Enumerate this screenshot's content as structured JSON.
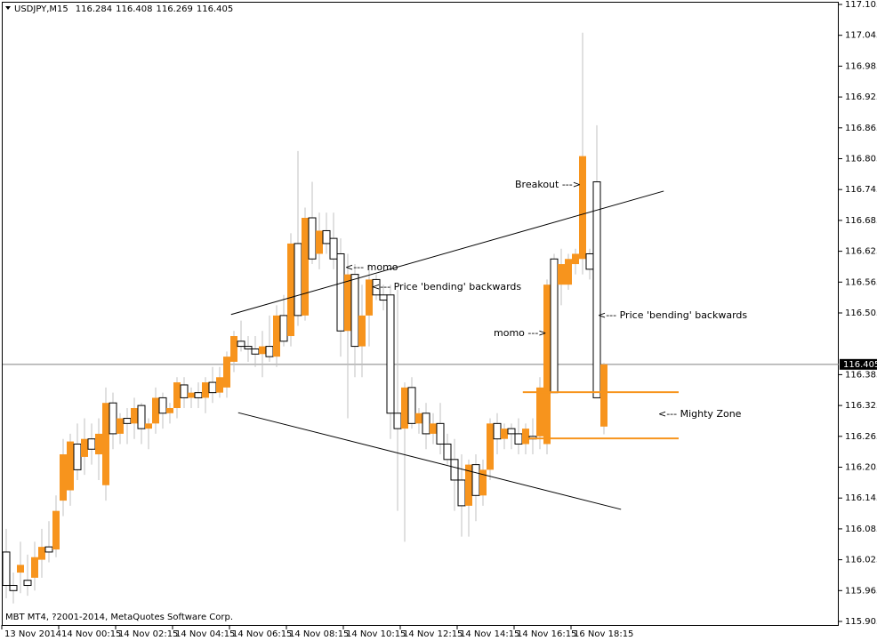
{
  "chart_data": {
    "type": "candlestick",
    "symbol": "USDJPY,M15",
    "header_ohlc": [
      116.284,
      116.408,
      116.269,
      116.405
    ],
    "footer": "MBT MT4, ?2001-2014, MetaQuotes Software Corp.",
    "up_color": "#f7941d",
    "down_color": "#ffffff",
    "outline_color": "#000000",
    "wick_color": "#c0c0c0",
    "categories": [
      "13 Nov 2014",
      null,
      null,
      null,
      null,
      null,
      null,
      null,
      "14 Nov 00:15",
      null,
      null,
      null,
      null,
      null,
      null,
      null,
      "14 Nov 02:15",
      null,
      null,
      null,
      null,
      null,
      null,
      null,
      "14 Nov 04:15",
      null,
      null,
      null,
      null,
      null,
      null,
      null,
      "14 Nov 06:15",
      null,
      null,
      null,
      null,
      null,
      null,
      null,
      "14 Nov 08:15",
      null,
      null,
      null,
      null,
      null,
      null,
      null,
      "14 Nov 10:15",
      null,
      null,
      null,
      null,
      null,
      null,
      null,
      "14 Nov 12:15",
      null,
      null,
      null,
      null,
      null,
      null,
      null,
      "14 Nov 14:15",
      null,
      null,
      null,
      null,
      null,
      null,
      null,
      "14 Nov 16:15",
      null,
      null,
      null,
      null,
      null,
      null,
      null,
      "16 Nov 18:15",
      null,
      null,
      null,
      null
    ],
    "open": [
      116.04,
      115.975,
      116.0,
      115.985,
      115.99,
      116.025,
      116.05,
      116.045,
      116.14,
      116.16,
      116.25,
      116.225,
      116.26,
      116.23,
      116.17,
      116.33,
      116.27,
      116.3,
      116.29,
      116.325,
      116.28,
      116.29,
      116.34,
      116.31,
      116.32,
      116.365,
      116.34,
      116.35,
      116.34,
      116.37,
      116.35,
      116.36,
      116.41,
      116.45,
      116.44,
      116.435,
      116.425,
      116.44,
      116.42,
      116.5,
      116.46,
      116.64,
      116.5,
      116.69,
      116.62,
      116.665,
      116.65,
      116.62,
      116.47,
      116.58,
      116.44,
      116.5,
      116.57,
      116.54,
      116.54,
      116.31,
      116.28,
      116.36,
      116.29,
      116.31,
      116.27,
      116.29,
      116.25,
      116.22,
      116.18,
      116.13,
      116.21,
      116.15,
      116.2,
      116.29,
      116.26,
      116.28,
      116.27,
      116.25,
      116.265,
      116.265,
      116.25,
      116.61,
      116.56,
      116.56,
      116.6,
      116.61,
      116.62,
      116.76,
      116.284
    ],
    "high": [
      116.085,
      116.0,
      116.06,
      116.035,
      116.06,
      116.085,
      116.1,
      116.15,
      116.26,
      116.27,
      116.29,
      116.3,
      116.29,
      116.3,
      116.36,
      116.35,
      116.31,
      116.32,
      116.34,
      116.33,
      116.3,
      116.36,
      116.35,
      116.33,
      116.38,
      116.38,
      116.36,
      116.37,
      116.38,
      116.4,
      116.4,
      116.43,
      116.47,
      116.49,
      116.46,
      116.46,
      116.47,
      116.5,
      116.52,
      116.54,
      116.66,
      116.82,
      116.71,
      116.76,
      116.7,
      116.7,
      116.7,
      116.65,
      116.62,
      116.6,
      116.56,
      116.6,
      116.58,
      116.56,
      116.56,
      116.55,
      116.37,
      116.38,
      116.32,
      116.33,
      116.31,
      116.33,
      116.27,
      116.26,
      116.23,
      116.22,
      116.23,
      116.22,
      116.3,
      116.31,
      116.29,
      116.29,
      116.3,
      116.29,
      116.3,
      116.38,
      116.57,
      116.62,
      116.63,
      116.62,
      116.63,
      117.05,
      116.63,
      116.87,
      116.408
    ],
    "low": [
      115.95,
      115.94,
      115.96,
      115.955,
      115.965,
      115.99,
      116.02,
      116.03,
      116.11,
      116.13,
      116.18,
      116.19,
      116.21,
      116.18,
      116.14,
      116.24,
      116.25,
      116.25,
      116.26,
      116.25,
      116.24,
      116.27,
      116.28,
      116.29,
      116.3,
      116.32,
      116.32,
      116.32,
      116.31,
      116.33,
      116.34,
      116.34,
      116.39,
      116.43,
      116.41,
      116.4,
      116.38,
      116.41,
      116.4,
      116.44,
      116.44,
      116.48,
      116.49,
      116.6,
      116.59,
      116.62,
      116.59,
      116.42,
      116.3,
      116.38,
      116.38,
      116.44,
      116.53,
      116.51,
      116.26,
      116.12,
      116.06,
      116.28,
      116.27,
      116.24,
      116.25,
      116.23,
      116.21,
      116.12,
      116.07,
      116.07,
      116.1,
      116.13,
      116.18,
      116.23,
      116.24,
      116.24,
      116.23,
      116.23,
      116.23,
      116.24,
      116.23,
      116.35,
      116.52,
      116.55,
      116.58,
      116.58,
      116.57,
      116.34,
      116.269
    ],
    "close": [
      115.975,
      115.965,
      116.015,
      115.975,
      116.03,
      116.05,
      116.04,
      116.12,
      116.23,
      116.255,
      116.2,
      116.26,
      116.24,
      116.27,
      116.33,
      116.27,
      116.3,
      116.29,
      116.32,
      116.28,
      116.29,
      116.34,
      116.31,
      116.32,
      116.37,
      116.34,
      116.35,
      116.34,
      116.37,
      116.35,
      116.38,
      116.42,
      116.46,
      116.44,
      116.435,
      116.425,
      116.44,
      116.42,
      116.5,
      116.45,
      116.64,
      116.5,
      116.69,
      116.61,
      116.665,
      116.64,
      116.61,
      116.47,
      116.58,
      116.44,
      116.5,
      116.57,
      116.54,
      116.53,
      116.31,
      116.28,
      116.36,
      116.29,
      116.31,
      116.27,
      116.29,
      116.25,
      116.22,
      116.18,
      116.13,
      116.21,
      116.15,
      116.2,
      116.29,
      116.26,
      116.28,
      116.27,
      116.25,
      116.28,
      116.26,
      116.36,
      116.56,
      116.35,
      116.6,
      116.61,
      116.62,
      116.81,
      116.59,
      116.34,
      116.405
    ],
    "ylim": [
      115.905,
      117.105
    ],
    "yticks": [
      117.105,
      117.045,
      116.985,
      116.925,
      116.865,
      116.805,
      116.745,
      116.685,
      116.625,
      116.565,
      116.505,
      116.385,
      116.325,
      116.265,
      116.205,
      116.145,
      116.085,
      116.025,
      115.965,
      115.905
    ],
    "current_price": 116.405,
    "lines": [
      {
        "x": [
          31.6,
          92.4
        ],
        "y": [
          116.502,
          116.742
        ],
        "color": "#000000"
      },
      {
        "x": [
          32.6,
          86.4
        ],
        "y": [
          116.311,
          116.123
        ],
        "color": "#000000"
      },
      {
        "x": [
          72.6,
          94.5
        ],
        "y": [
          116.351,
          116.351
        ],
        "color": "#f7941d"
      },
      {
        "x": [
          72.6,
          94.5
        ],
        "y": [
          116.261,
          116.261
        ],
        "color": "#f7941d"
      }
    ],
    "annotations": [
      "<--- momo",
      "<--- Price 'bending' backwards",
      "Breakout --->",
      "momo --->",
      "<--- Price 'bending' backwards",
      "<--- Mighty Zone"
    ]
  }
}
